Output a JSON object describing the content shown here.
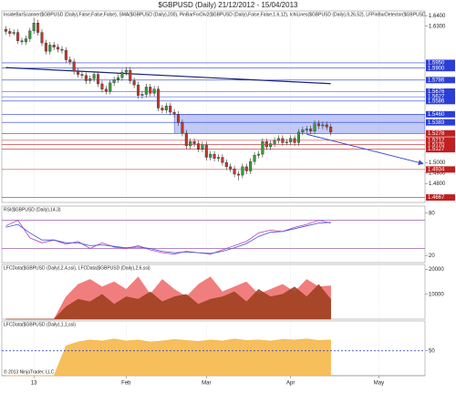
{
  "chart_data": [
    {
      "type": "candlestick",
      "title": "$GBPUSD (Daily) 21/12/2012 - 15/04/2013",
      "subtitle": "InsideBarScanner($GBPUSD (Daily),False,False,False), SMA($GBPUSD (Daily),200), PinBarForDiv2($GBPUSD (Daily),False,False,1.6,12), IchiLines($GBPUSD (Daily),9,26,52), LFPinBarDetector($GBPUSD (Daily))",
      "up_color": "#3a9a3a",
      "down_color": "#c0392b",
      "xlim": [
        -1,
        104.5
      ],
      "xticks": [
        {
          "value": 7,
          "label": "13"
        },
        {
          "value": 30,
          "label": "Feb"
        },
        {
          "value": 50,
          "label": "Mar"
        },
        {
          "value": 71,
          "label": "Apr"
        },
        {
          "value": 93,
          "label": "May"
        }
      ],
      "ylim": [
        1.462,
        1.6445
      ],
      "yticks": [
        {
          "value": 1.64,
          "label": "1.6400"
        },
        {
          "value": 1.63,
          "label": "1.6300"
        },
        {
          "value": 1.5,
          "label": "1.5000"
        },
        {
          "value": 1.49,
          "label": "1.4900"
        },
        {
          "value": 1.48,
          "label": "1.4800"
        }
      ],
      "candles": [
        [
          1.627,
          1.63,
          1.622,
          1.625
        ],
        [
          1.625,
          1.628,
          1.62,
          1.623
        ],
        [
          1.623,
          1.627,
          1.621,
          1.624
        ],
        [
          1.624,
          1.627,
          1.613,
          1.616
        ],
        [
          1.616,
          1.619,
          1.612,
          1.615
        ],
        [
          1.615,
          1.621,
          1.612,
          1.618
        ],
        [
          1.618,
          1.6285,
          1.615,
          1.6255
        ],
        [
          1.6255,
          1.638,
          1.6225,
          1.633
        ],
        [
          1.633,
          1.636,
          1.621,
          1.624
        ],
        [
          1.624,
          1.627,
          1.611,
          1.614
        ],
        [
          1.614,
          1.617,
          1.603,
          1.606
        ],
        [
          1.606,
          1.615,
          1.603,
          1.612
        ],
        [
          1.612,
          1.615,
          1.607,
          1.61
        ],
        [
          1.61,
          1.613,
          1.605,
          1.608
        ],
        [
          1.608,
          1.611,
          1.604,
          1.607
        ],
        [
          1.607,
          1.61,
          1.595,
          1.598
        ],
        [
          1.598,
          1.601,
          1.593,
          1.596
        ],
        [
          1.596,
          1.599,
          1.584,
          1.587
        ],
        [
          1.587,
          1.59,
          1.581,
          1.584
        ],
        [
          1.584,
          1.587,
          1.58,
          1.583
        ],
        [
          1.583,
          1.586,
          1.575,
          1.578
        ],
        [
          1.578,
          1.583,
          1.575,
          1.58
        ],
        [
          1.58,
          1.587,
          1.577,
          1.584
        ],
        [
          1.584,
          1.587,
          1.572,
          1.575
        ],
        [
          1.575,
          1.578,
          1.567,
          1.57
        ],
        [
          1.57,
          1.573,
          1.565,
          1.568
        ],
        [
          1.568,
          1.579,
          1.565,
          1.576
        ],
        [
          1.576,
          1.582,
          1.573,
          1.579
        ],
        [
          1.579,
          1.584,
          1.576,
          1.581
        ],
        [
          1.581,
          1.589,
          1.578,
          1.586
        ],
        [
          1.586,
          1.591,
          1.583,
          1.588
        ],
        [
          1.588,
          1.591,
          1.575,
          1.578
        ],
        [
          1.578,
          1.581,
          1.571,
          1.574
        ],
        [
          1.574,
          1.577,
          1.561,
          1.564
        ],
        [
          1.564,
          1.568,
          1.561,
          1.565
        ],
        [
          1.565,
          1.575,
          1.562,
          1.572
        ],
        [
          1.572,
          1.575,
          1.563,
          1.566
        ],
        [
          1.566,
          1.573,
          1.563,
          1.57
        ],
        [
          1.57,
          1.573,
          1.549,
          1.552
        ],
        [
          1.552,
          1.555,
          1.547,
          1.55
        ],
        [
          1.55,
          1.557,
          1.547,
          1.554
        ],
        [
          1.554,
          1.557,
          1.545,
          1.548
        ],
        [
          1.548,
          1.551,
          1.543,
          1.546
        ],
        [
          1.546,
          1.549,
          1.535,
          1.538
        ],
        [
          1.538,
          1.541,
          1.525,
          1.528
        ],
        [
          1.528,
          1.531,
          1.513,
          1.516
        ],
        [
          1.516,
          1.523,
          1.513,
          1.52
        ],
        [
          1.52,
          1.523,
          1.515,
          1.518
        ],
        [
          1.518,
          1.521,
          1.51,
          1.513
        ],
        [
          1.513,
          1.52,
          1.51,
          1.517
        ],
        [
          1.517,
          1.52,
          1.502,
          1.505
        ],
        [
          1.505,
          1.511,
          1.502,
          1.508
        ],
        [
          1.508,
          1.511,
          1.501,
          1.504
        ],
        [
          1.504,
          1.508,
          1.501,
          1.505
        ],
        [
          1.505,
          1.508,
          1.497,
          1.5
        ],
        [
          1.5,
          1.503,
          1.493,
          1.496
        ],
        [
          1.496,
          1.499,
          1.491,
          1.494
        ],
        [
          1.494,
          1.497,
          1.486,
          1.489
        ],
        [
          1.489,
          1.492,
          1.483,
          1.488
        ],
        [
          1.488,
          1.499,
          1.485,
          1.496
        ],
        [
          1.496,
          1.499,
          1.489,
          1.492
        ],
        [
          1.492,
          1.504,
          1.489,
          1.501
        ],
        [
          1.501,
          1.51,
          1.498,
          1.507
        ],
        [
          1.507,
          1.511,
          1.504,
          1.508
        ],
        [
          1.508,
          1.523,
          1.505,
          1.52
        ],
        [
          1.52,
          1.523,
          1.512,
          1.515
        ],
        [
          1.515,
          1.521,
          1.512,
          1.518
        ],
        [
          1.518,
          1.524,
          1.515,
          1.521
        ],
        [
          1.521,
          1.526,
          1.518,
          1.523
        ],
        [
          1.523,
          1.526,
          1.516,
          1.519
        ],
        [
          1.519,
          1.5225,
          1.5165,
          1.5195
        ],
        [
          1.5195,
          1.526,
          1.5165,
          1.523
        ],
        [
          1.523,
          1.526,
          1.516,
          1.519
        ],
        [
          1.519,
          1.532,
          1.516,
          1.529
        ],
        [
          1.529,
          1.534,
          1.526,
          1.531
        ],
        [
          1.531,
          1.535,
          1.528,
          1.532
        ],
        [
          1.532,
          1.535,
          1.527,
          1.53
        ],
        [
          1.53,
          1.54,
          1.527,
          1.537
        ],
        [
          1.537,
          1.54,
          1.532,
          1.535
        ],
        [
          1.535,
          1.539,
          1.532,
          1.536
        ],
        [
          1.536,
          1.539,
          1.531,
          1.534
        ],
        [
          1.534,
          1.537,
          1.526,
          1.529
        ]
      ],
      "levels": [
        {
          "value": 1.595,
          "label": "1.5950",
          "color": "#2b3fd6"
        },
        {
          "value": 1.59,
          "label": "1.5900",
          "color": "#2b3fd6"
        },
        {
          "value": 1.5786,
          "label": "1.5786",
          "color": "#2b3fd6"
        },
        {
          "value": 1.5676,
          "label": "1.5676",
          "color": "#2b3fd6"
        },
        {
          "value": 1.5627,
          "label": "1.5627",
          "color": "#2b3fd6"
        },
        {
          "value": 1.5586,
          "label": "1.5586",
          "color": "#2b3fd6"
        },
        {
          "value": 1.546,
          "label": "1.5460",
          "color": "#2b3fd6"
        },
        {
          "value": 1.5383,
          "label": "1.5383",
          "color": "#2b3fd6"
        },
        {
          "value": 1.5278,
          "label": "1.5278",
          "color": "#c02020"
        },
        {
          "value": 1.5212,
          "label": "1.5212",
          "color": "#c02020"
        },
        {
          "value": 1.517,
          "label": "1.5170",
          "color": "#c02020"
        },
        {
          "value": 1.5127,
          "label": "1.5127",
          "color": "#c02020"
        },
        {
          "value": 1.4934,
          "label": "1.4934",
          "color": "#c02020"
        },
        {
          "value": 1.4667,
          "label": "1.4667",
          "color": "#c02020"
        }
      ],
      "zone": {
        "start": 42,
        "high": 1.546,
        "low": 1.5278,
        "color": "#8f9cf0"
      },
      "sma": {
        "x": [
          0,
          81
        ],
        "values": [
          1.5905,
          1.5752
        ],
        "color": "#1a237e"
      },
      "projection": {
        "x": [
          75,
          104
        ],
        "values": [
          1.527,
          1.499
        ],
        "color": "#3b4fc4"
      }
    },
    {
      "type": "line",
      "title": "RSI($GBPUSD (Daily),14,3)",
      "x": [
        0,
        3,
        6,
        9,
        12,
        15,
        18,
        21,
        24,
        27,
        30,
        33,
        36,
        39,
        42,
        45,
        48,
        51,
        54,
        57,
        60,
        63,
        66,
        69,
        72,
        75,
        78,
        81
      ],
      "series": [
        {
          "color": "#b040c0",
          "values": [
            62,
            70,
            45,
            38,
            42,
            36,
            40,
            30,
            38,
            32,
            30,
            34,
            28,
            24,
            22,
            26,
            24,
            22,
            28,
            34,
            40,
            52,
            56,
            54,
            60,
            64,
            70,
            66
          ]
        },
        {
          "color": "#4050d0",
          "values": [
            60,
            64,
            52,
            42,
            42,
            38,
            38,
            34,
            35,
            33,
            31,
            32,
            30,
            26,
            24,
            25,
            24,
            23,
            26,
            31,
            37,
            47,
            53,
            54,
            58,
            62,
            66,
            67
          ]
        }
      ],
      "ylim": [
        10,
        90
      ],
      "yticks": [
        20,
        80
      ],
      "levels": [
        30,
        70
      ],
      "level_color": "#9a60b0"
    },
    {
      "type": "area",
      "title": "LFCData($GBPUSD (Daily),2,4,ssi), LFCData($GBPUSD (Daily),2,6,ssi)",
      "x": [
        0,
        3,
        6,
        9,
        12,
        15,
        18,
        21,
        24,
        27,
        30,
        33,
        36,
        39,
        42,
        45,
        48,
        51,
        54,
        57,
        60,
        63,
        66,
        69,
        72,
        75,
        78,
        81
      ],
      "series": [
        {
          "color": "#f07070",
          "values": [
            0,
            0,
            0,
            0,
            0,
            9000,
            14000,
            16000,
            13000,
            15000,
            12000,
            17000,
            10000,
            16000,
            12000,
            9000,
            14000,
            17000,
            11000,
            13000,
            15000,
            10000,
            12000,
            14000,
            11000,
            16000,
            13000,
            13400
          ]
        },
        {
          "color": "#a04020",
          "values": [
            0,
            0,
            0,
            0,
            0,
            5000,
            8000,
            7000,
            10000,
            6000,
            9000,
            8000,
            11000,
            7000,
            9000,
            10000,
            6000,
            8000,
            9000,
            11000,
            7000,
            12000,
            9000,
            10000,
            13000,
            9000,
            14000,
            8000
          ]
        }
      ],
      "ylim": [
        0,
        22000
      ],
      "yticks": [
        10000,
        20000
      ]
    },
    {
      "type": "area",
      "title": "LFCData($GBPUSD (Daily),1,1,ssi)",
      "x": [
        0,
        3,
        6,
        9,
        12,
        15,
        18,
        21,
        24,
        27,
        30,
        33,
        36,
        39,
        42,
        45,
        48,
        51,
        54,
        57,
        60,
        63,
        66,
        69,
        72,
        75,
        78,
        81
      ],
      "series": [
        {
          "color": "#f5b84a",
          "values": [
            0,
            0,
            0,
            0,
            0,
            60,
            68,
            72,
            70,
            74,
            70,
            72,
            68,
            70,
            73,
            71,
            69,
            72,
            70,
            74,
            71,
            72,
            70,
            73,
            72,
            74,
            71,
            72
          ]
        }
      ],
      "ylim": [
        0,
        110
      ],
      "yticks": [
        50
      ],
      "hline": 50,
      "hline_color": "#2030c0",
      "copyright": "© 2013 NinjaTrader, LLC"
    }
  ]
}
